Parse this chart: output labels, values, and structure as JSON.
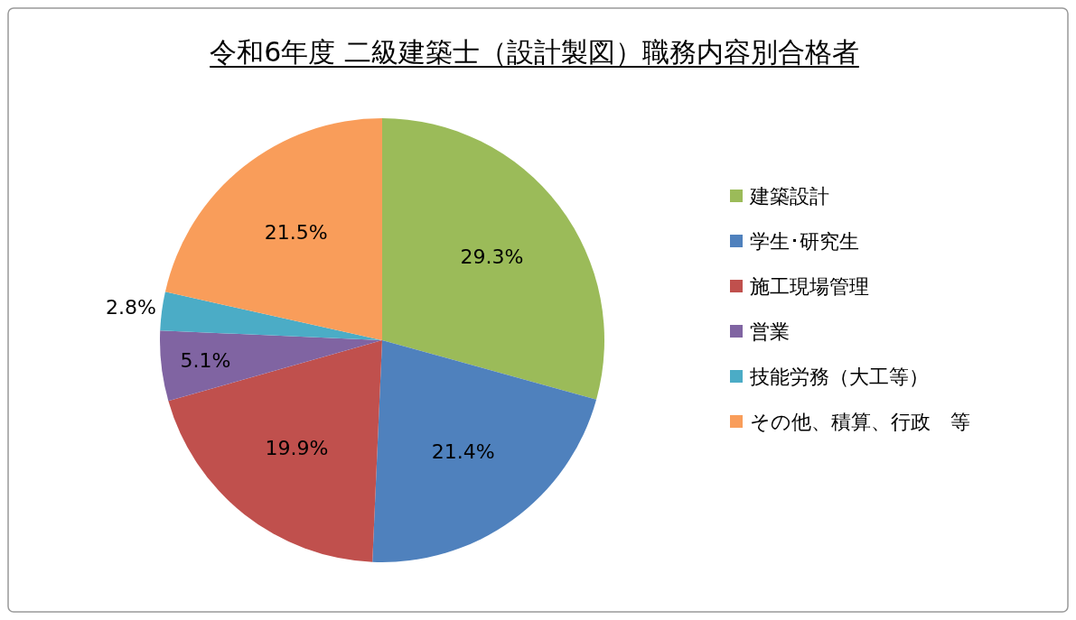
{
  "chart_data": {
    "type": "pie",
    "title": "令和6年度 二級建築士（設計製図）職務内容別合格者",
    "categories": [
      "建築設計",
      "学生･研究生",
      "施工現場管理",
      "営業",
      "技能労務（大工等）",
      "その他、積算、行政　等"
    ],
    "values": [
      29.3,
      21.4,
      19.9,
      5.1,
      2.8,
      21.5
    ],
    "colors": [
      "#9bbb59",
      "#4f81bd",
      "#c0504d",
      "#8064a2",
      "#4bacc6",
      "#f99d5a"
    ],
    "value_labels": [
      "29.3%",
      "21.4%",
      "19.9%",
      "5.1%",
      "2.8%",
      "21.5%"
    ],
    "legend": "right"
  }
}
